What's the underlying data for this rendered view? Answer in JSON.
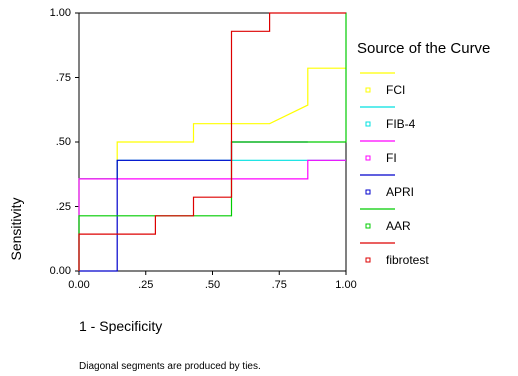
{
  "chart_data": {
    "type": "line",
    "title": "",
    "xlabel": "1 - Specificity",
    "ylabel": "Sensitivity",
    "xlim": [
      0,
      1
    ],
    "ylim": [
      0,
      1
    ],
    "x_ticks": [
      "0.00",
      ".25",
      ".50",
      ".75",
      "1.00"
    ],
    "y_ticks": [
      "0.00",
      ".25",
      ".50",
      ".75",
      "1.00"
    ],
    "grid": false,
    "legend_title": "Source of the Curve",
    "legend_placement": "right",
    "footnote": "Diagonal segments are produced by ties.",
    "series": [
      {
        "name": "FCI",
        "color": "#ffff00",
        "x": [
          0,
          0,
          0.143,
          0.143,
          0.429,
          0.429,
          0.714,
          0.857,
          0.857,
          1.0
        ],
        "y": [
          0,
          0.357,
          0.357,
          0.5,
          0.5,
          0.571,
          0.571,
          0.643,
          0.786,
          0.786
        ]
      },
      {
        "name": "FIB-4",
        "color": "#00e0e0",
        "x": [
          0,
          0,
          0.143,
          0.143,
          0.571,
          0.571,
          0.857,
          0.857,
          1.0
        ],
        "y": [
          0,
          0.357,
          0.357,
          0.429,
          0.429,
          0.429,
          0.429,
          0.429,
          0.429
        ]
      },
      {
        "name": "FI",
        "color": "#ff00ff",
        "x": [
          0,
          0,
          0.857,
          0.857,
          1.0
        ],
        "y": [
          0,
          0.357,
          0.357,
          0.429,
          0.429
        ]
      },
      {
        "name": "APRI",
        "color": "#0000cc",
        "x": [
          0,
          0.143,
          0.143,
          0.571,
          0.571,
          0.857
        ],
        "y": [
          0,
          0,
          0.429,
          0.429,
          0.5,
          0.5
        ]
      },
      {
        "name": "AAR",
        "color": "#00cc00",
        "x": [
          0,
          0,
          0.571,
          0.571,
          1.0,
          1.0
        ],
        "y": [
          0,
          0.214,
          0.214,
          0.5,
          0.5,
          1.0
        ]
      },
      {
        "name": "fibrotest",
        "color": "#dd0000",
        "x": [
          0,
          0,
          0.286,
          0.286,
          0.429,
          0.429,
          0.571,
          0.571,
          0.714,
          0.714,
          1.0
        ],
        "y": [
          0,
          0.143,
          0.143,
          0.214,
          0.214,
          0.286,
          0.286,
          0.929,
          0.929,
          1.0,
          1.0
        ]
      }
    ]
  }
}
